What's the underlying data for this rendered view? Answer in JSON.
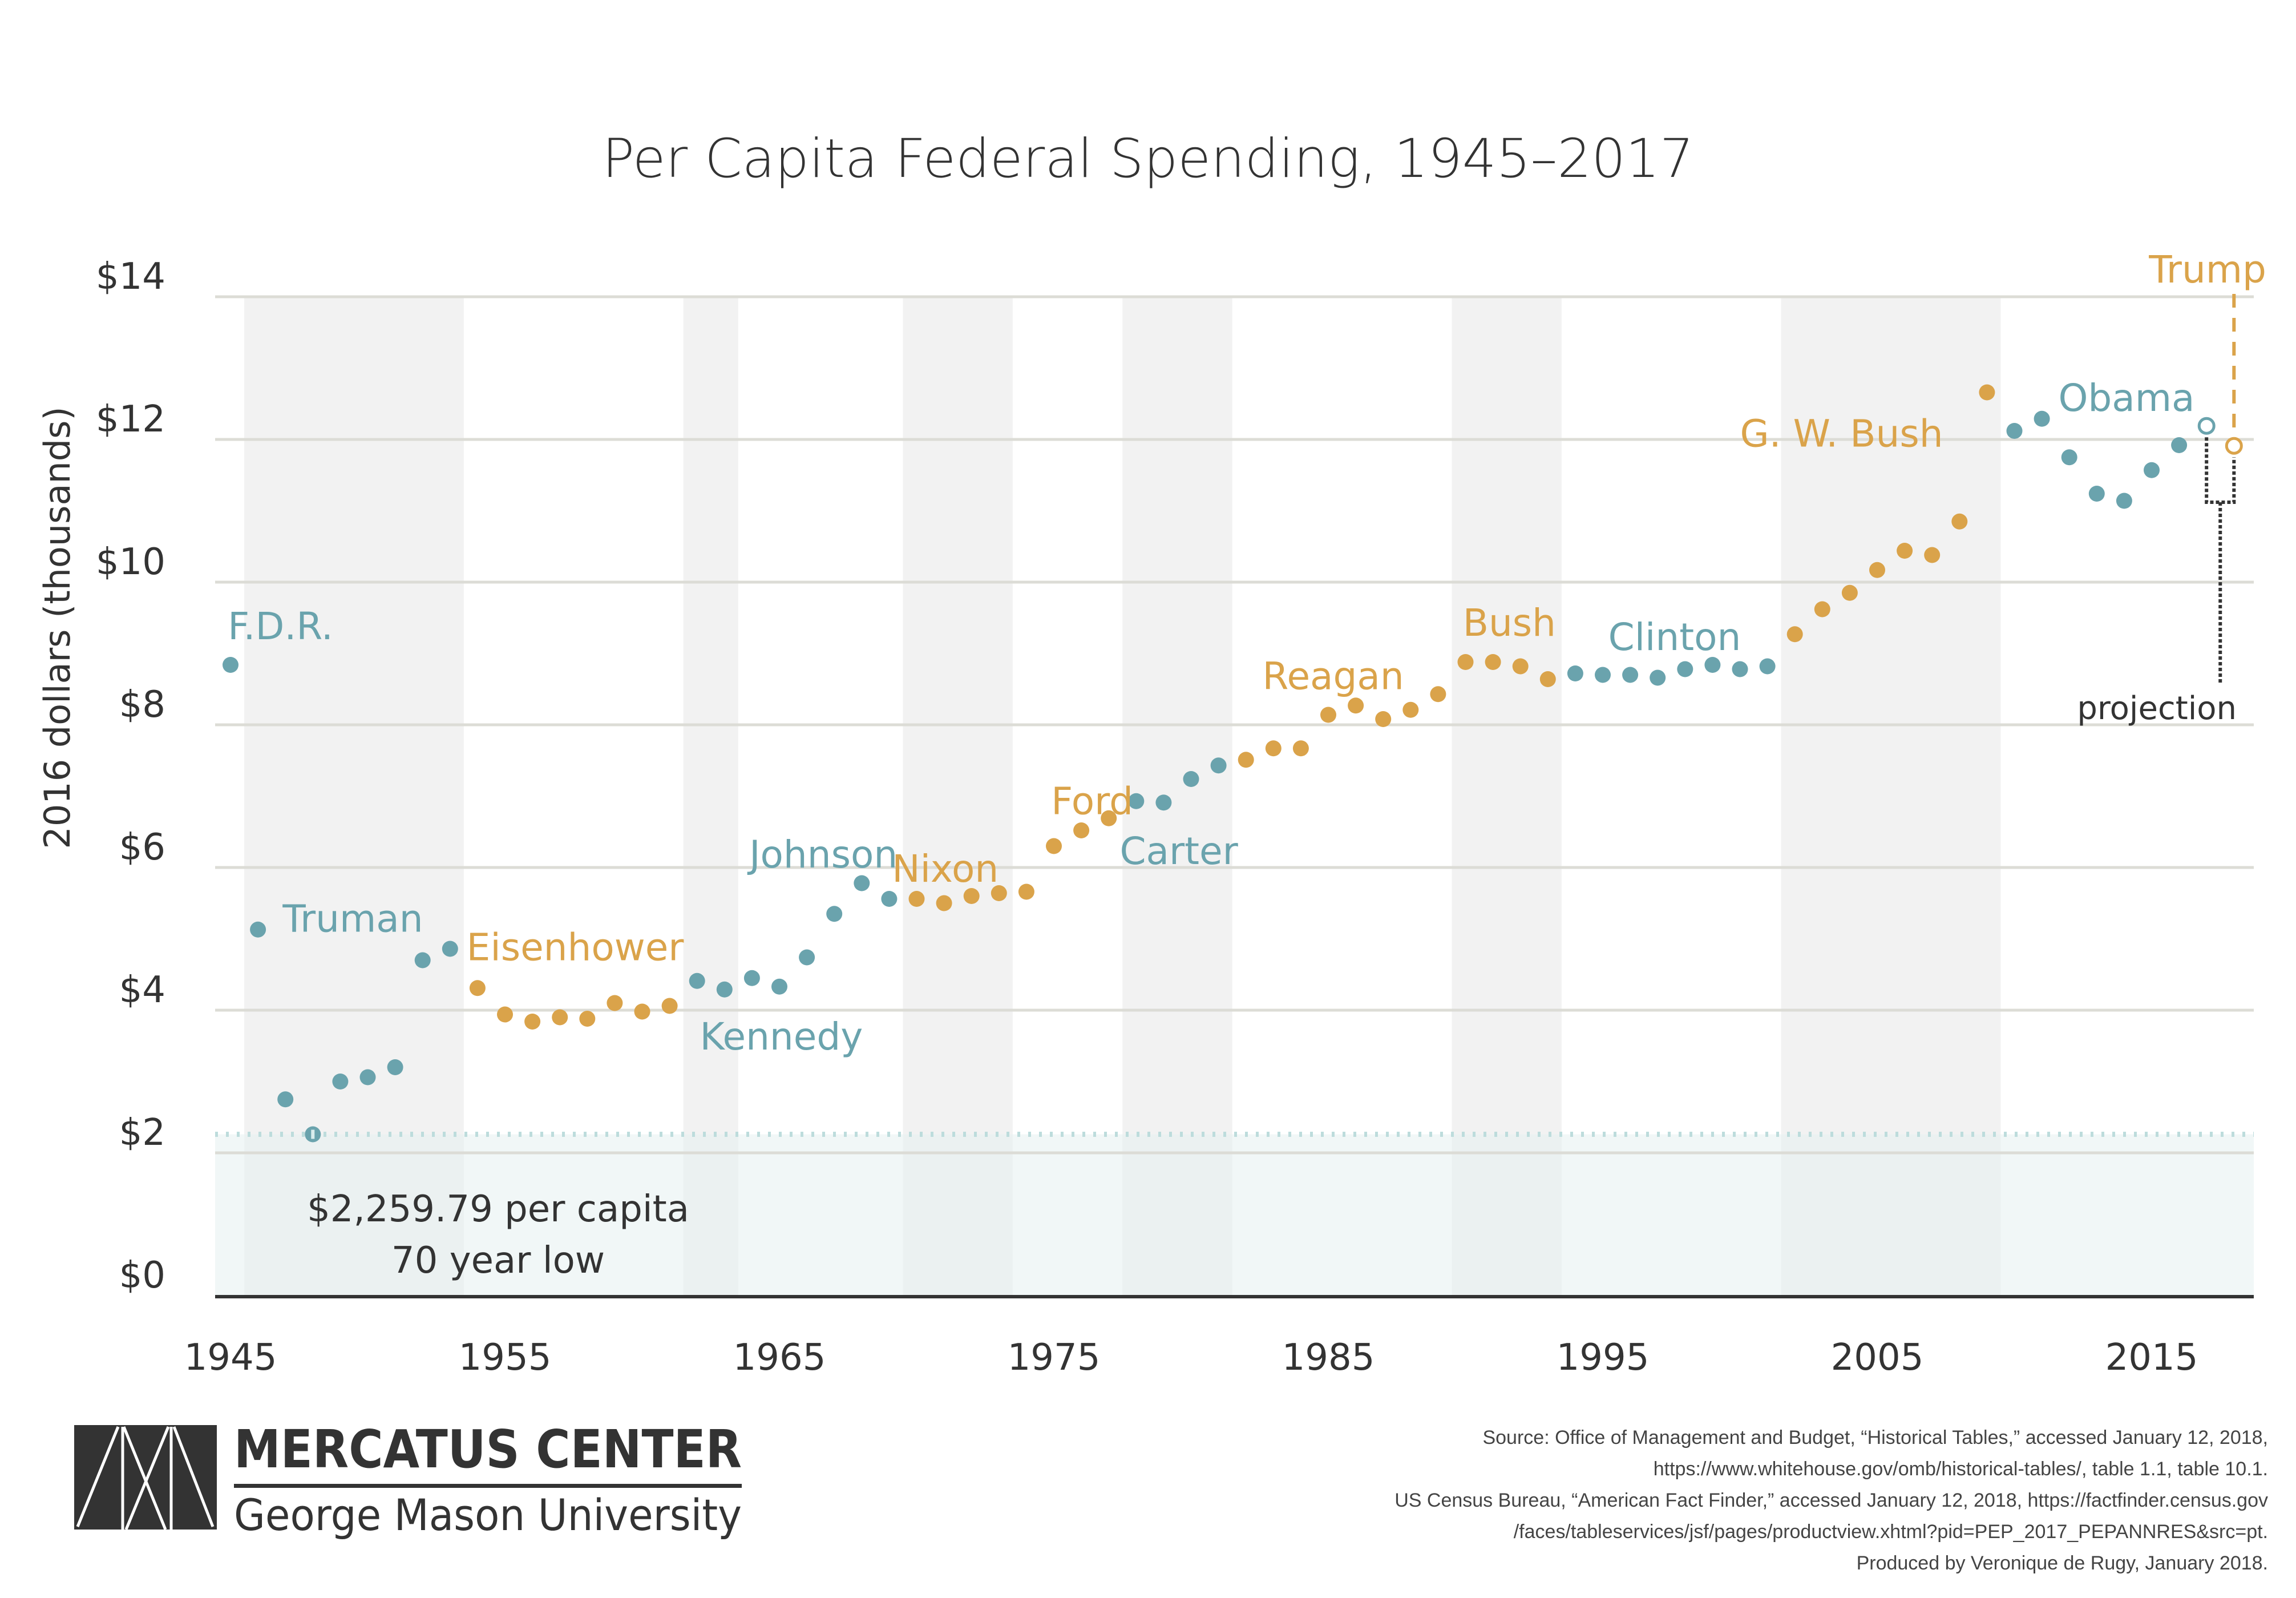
{
  "chart_data": {
    "type": "scatter",
    "title": "Per Capita Federal Spending, 1945–2017",
    "xlabel": "",
    "ylabel": "2016 dollars (thousands)",
    "xlim": [
      1945,
      2018
    ],
    "ylim": [
      0,
      14
    ],
    "grid": true,
    "y_ticks": [
      {
        "value": 0,
        "label": "$0"
      },
      {
        "value": 2,
        "label": "$2"
      },
      {
        "value": 4,
        "label": "$4"
      },
      {
        "value": 6,
        "label": "$6"
      },
      {
        "value": 8,
        "label": "$8"
      },
      {
        "value": 10,
        "label": "$10"
      },
      {
        "value": 12,
        "label": "$12"
      },
      {
        "value": 14,
        "label": "$14"
      }
    ],
    "x_ticks": [
      {
        "value": 1945,
        "label": "1945"
      },
      {
        "value": 1955,
        "label": "1955"
      },
      {
        "value": 1965,
        "label": "1965"
      },
      {
        "value": 1975,
        "label": "1975"
      },
      {
        "value": 1985,
        "label": "1985"
      },
      {
        "value": 1995,
        "label": "1995"
      },
      {
        "value": 2005,
        "label": "2005"
      },
      {
        "value": 2015,
        "label": "2015"
      }
    ],
    "party_colors": {
      "democrat": "#6aa3ad",
      "republican": "#daa34a"
    },
    "shaded_terms": [
      {
        "start": 1945.5,
        "end": 1953.5
      },
      {
        "start": 1961.5,
        "end": 1963.5
      },
      {
        "start": 1969.5,
        "end": 1973.5
      },
      {
        "start": 1977.5,
        "end": 1981.5
      },
      {
        "start": 1989.5,
        "end": 1993.5
      },
      {
        "start": 2001.5,
        "end": 2009.5
      }
    ],
    "series": [
      {
        "name": "Per capita federal spending",
        "points": [
          {
            "year": 1945,
            "value": 8.84,
            "party": "democrat"
          },
          {
            "year": 1946,
            "value": 5.13,
            "party": "democrat"
          },
          {
            "year": 1947,
            "value": 2.75,
            "party": "democrat"
          },
          {
            "year": 1948,
            "value": 2.26,
            "party": "democrat",
            "highlight": true
          },
          {
            "year": 1949,
            "value": 3.0,
            "party": "democrat"
          },
          {
            "year": 1950,
            "value": 3.06,
            "party": "democrat"
          },
          {
            "year": 1951,
            "value": 3.2,
            "party": "democrat"
          },
          {
            "year": 1952,
            "value": 4.7,
            "party": "democrat"
          },
          {
            "year": 1953,
            "value": 4.86,
            "party": "democrat"
          },
          {
            "year": 1954,
            "value": 4.31,
            "party": "republican"
          },
          {
            "year": 1955,
            "value": 3.94,
            "party": "republican"
          },
          {
            "year": 1956,
            "value": 3.84,
            "party": "republican"
          },
          {
            "year": 1957,
            "value": 3.9,
            "party": "republican"
          },
          {
            "year": 1958,
            "value": 3.88,
            "party": "republican"
          },
          {
            "year": 1959,
            "value": 4.1,
            "party": "republican"
          },
          {
            "year": 1960,
            "value": 3.98,
            "party": "republican"
          },
          {
            "year": 1961,
            "value": 4.06,
            "party": "republican"
          },
          {
            "year": 1962,
            "value": 4.41,
            "party": "democrat"
          },
          {
            "year": 1963,
            "value": 4.29,
            "party": "democrat"
          },
          {
            "year": 1964,
            "value": 4.45,
            "party": "democrat"
          },
          {
            "year": 1965,
            "value": 4.33,
            "party": "democrat"
          },
          {
            "year": 1966,
            "value": 4.74,
            "party": "democrat"
          },
          {
            "year": 1967,
            "value": 5.35,
            "party": "democrat"
          },
          {
            "year": 1968,
            "value": 5.78,
            "party": "democrat"
          },
          {
            "year": 1969,
            "value": 5.56,
            "party": "democrat"
          },
          {
            "year": 1970,
            "value": 5.56,
            "party": "republican"
          },
          {
            "year": 1971,
            "value": 5.5,
            "party": "republican"
          },
          {
            "year": 1972,
            "value": 5.6,
            "party": "republican"
          },
          {
            "year": 1973,
            "value": 5.64,
            "party": "republican"
          },
          {
            "year": 1974,
            "value": 5.66,
            "party": "republican"
          },
          {
            "year": 1975,
            "value": 6.3,
            "party": "republican"
          },
          {
            "year": 1976,
            "value": 6.52,
            "party": "republican"
          },
          {
            "year": 1977,
            "value": 6.69,
            "party": "republican"
          },
          {
            "year": 1978,
            "value": 6.93,
            "party": "democrat"
          },
          {
            "year": 1979,
            "value": 6.91,
            "party": "democrat"
          },
          {
            "year": 1980,
            "value": 7.24,
            "party": "democrat"
          },
          {
            "year": 1981,
            "value": 7.43,
            "party": "democrat"
          },
          {
            "year": 1982,
            "value": 7.51,
            "party": "republican"
          },
          {
            "year": 1983,
            "value": 7.67,
            "party": "republican"
          },
          {
            "year": 1984,
            "value": 7.67,
            "party": "republican"
          },
          {
            "year": 1985,
            "value": 8.14,
            "party": "republican"
          },
          {
            "year": 1986,
            "value": 8.27,
            "party": "republican"
          },
          {
            "year": 1987,
            "value": 8.08,
            "party": "republican"
          },
          {
            "year": 1988,
            "value": 8.21,
            "party": "republican"
          },
          {
            "year": 1989,
            "value": 8.43,
            "party": "republican"
          },
          {
            "year": 1990,
            "value": 8.88,
            "party": "republican"
          },
          {
            "year": 1991,
            "value": 8.88,
            "party": "republican"
          },
          {
            "year": 1992,
            "value": 8.82,
            "party": "republican"
          },
          {
            "year": 1993,
            "value": 8.64,
            "party": "republican"
          },
          {
            "year": 1994,
            "value": 8.72,
            "party": "democrat"
          },
          {
            "year": 1995,
            "value": 8.7,
            "party": "democrat"
          },
          {
            "year": 1996,
            "value": 8.7,
            "party": "democrat"
          },
          {
            "year": 1997,
            "value": 8.66,
            "party": "democrat"
          },
          {
            "year": 1998,
            "value": 8.78,
            "party": "democrat"
          },
          {
            "year": 1999,
            "value": 8.84,
            "party": "democrat"
          },
          {
            "year": 2000,
            "value": 8.78,
            "party": "democrat"
          },
          {
            "year": 2001,
            "value": 8.82,
            "party": "democrat"
          },
          {
            "year": 2002,
            "value": 9.27,
            "party": "republican"
          },
          {
            "year": 2003,
            "value": 9.62,
            "party": "republican"
          },
          {
            "year": 2004,
            "value": 9.85,
            "party": "republican"
          },
          {
            "year": 2005,
            "value": 10.17,
            "party": "republican"
          },
          {
            "year": 2006,
            "value": 10.44,
            "party": "republican"
          },
          {
            "year": 2007,
            "value": 10.38,
            "party": "republican"
          },
          {
            "year": 2008,
            "value": 10.85,
            "party": "republican"
          },
          {
            "year": 2009,
            "value": 12.66,
            "party": "republican"
          },
          {
            "year": 2010,
            "value": 12.12,
            "party": "democrat"
          },
          {
            "year": 2011,
            "value": 12.29,
            "party": "democrat"
          },
          {
            "year": 2012,
            "value": 11.75,
            "party": "democrat"
          },
          {
            "year": 2013,
            "value": 11.24,
            "party": "democrat"
          },
          {
            "year": 2014,
            "value": 11.14,
            "party": "democrat"
          },
          {
            "year": 2015,
            "value": 11.57,
            "party": "democrat"
          },
          {
            "year": 2016,
            "value": 11.92,
            "party": "democrat"
          }
        ]
      },
      {
        "name": "Projection",
        "points": [
          {
            "year": 2017,
            "value": 12.19,
            "party": "democrat",
            "projection": true
          },
          {
            "year": 2018,
            "value": 11.91,
            "party": "republican",
            "projection": true
          }
        ]
      }
    ],
    "president_labels": [
      {
        "text": "F.D.R.",
        "party": "democrat",
        "x": 1944.9,
        "y": 9.2
      },
      {
        "text": "Truman",
        "party": "democrat",
        "x": 1946.9,
        "y": 5.1
      },
      {
        "text": "Eisenhower",
        "party": "republican",
        "x": 1953.6,
        "y": 4.7
      },
      {
        "text": "Kennedy",
        "party": "democrat",
        "x": 1962.1,
        "y": 3.45
      },
      {
        "text": "Johnson",
        "party": "democrat",
        "x": 1963.9,
        "y": 6.0
      },
      {
        "text": "Nixon",
        "party": "republican",
        "x": 1969.1,
        "y": 5.8
      },
      {
        "text": "Ford",
        "party": "republican",
        "x": 1974.9,
        "y": 6.75
      },
      {
        "text": "Carter",
        "party": "democrat",
        "x": 1977.4,
        "y": 6.05
      },
      {
        "text": "Reagan",
        "party": "republican",
        "x": 1982.6,
        "y": 8.5
      },
      {
        "text": "Bush",
        "party": "republican",
        "x": 1989.9,
        "y": 9.25
      },
      {
        "text": "Clinton",
        "party": "democrat",
        "x": 1995.2,
        "y": 9.05
      },
      {
        "text": "G. W. Bush",
        "party": "republican",
        "x": 2000.0,
        "y": 11.9
      },
      {
        "text": "Obama",
        "party": "democrat",
        "x": 2011.6,
        "y": 12.4
      },
      {
        "text": "Trump",
        "party": "republican",
        "x": 2014.9,
        "y": 14.2
      }
    ],
    "annotations": {
      "low_line_value": 2.26,
      "low_line_color": "#bddcdc",
      "low_text_line1": "$2,259.79 per capita",
      "low_text_line2": "70 year low",
      "projection_label": "projection"
    }
  },
  "footer": {
    "logo_top": "MERCATUS CENTER",
    "logo_bottom": "George Mason University",
    "source_lines": [
      "Source: Office of Management and Budget, “Historical Tables,” accessed January 12, 2018,",
      "https://www.whitehouse.gov/omb/historical-tables/, table 1.1, table 10.1.",
      "US Census Bureau, “American Fact Finder,” accessed January 12, 2018, https://factfinder.census.gov",
      "/faces/tableservices/jsf/pages/productview.xhtml?pid=PEP_2017_PEPANNRES&src=pt.",
      "Produced by Veronique de Rugy, January 2018."
    ]
  }
}
